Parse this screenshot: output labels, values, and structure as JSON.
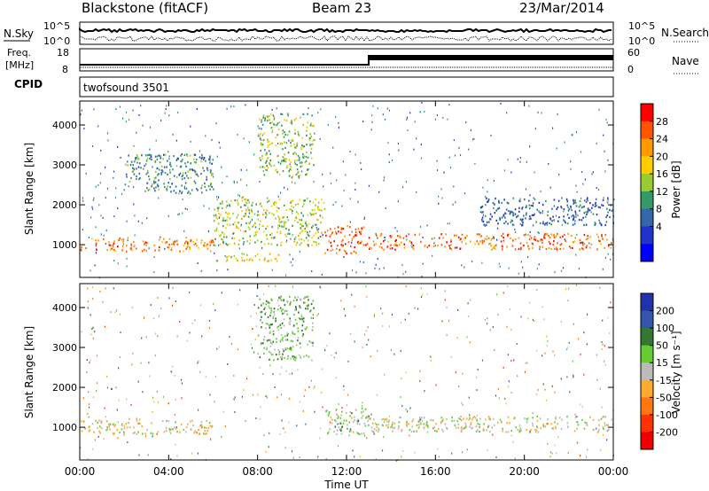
{
  "header": {
    "station": "Blackstone (fitACF)",
    "beam": "Beam 23",
    "date": "23/Mar/2014"
  },
  "noise_panel": {
    "left_label": "N.Sky",
    "right_label": "N.Search",
    "left_ticks": [
      "10^5",
      "10^0"
    ],
    "right_ticks": [
      "10^5",
      "10^0"
    ]
  },
  "freq_panel": {
    "left_label_1": "Freq.",
    "left_label_2": "[MHz]",
    "right_label": "Nave",
    "left_ticks": [
      "18",
      "8"
    ],
    "right_ticks": [
      "60",
      "0"
    ]
  },
  "cpid_panel": {
    "label": "CPID",
    "value": "twofsound 3501"
  },
  "power_colorbar": {
    "label": "Power [dB]",
    "ticks": [
      "28",
      "24",
      "20",
      "16",
      "12",
      "8",
      "4"
    ],
    "colors": [
      "#ff0000",
      "#ff5500",
      "#ff9900",
      "#ffcc00",
      "#99cc33",
      "#339966",
      "#3366aa",
      "#2233cc",
      "#0000ff"
    ]
  },
  "velocity_colorbar": {
    "label": "Velocity [m s⁻¹]",
    "ticks": [
      "200",
      "100",
      "50",
      "15",
      "-15",
      "-50",
      "-100",
      "-200"
    ],
    "colors": [
      "#2233aa",
      "#3355aa",
      "#337733",
      "#66cc33",
      "#bbbbbb",
      "#ffaa33",
      "#ff7711",
      "#ff3300",
      "#ee0000"
    ]
  },
  "axes": {
    "ylabel": "Slant Range [km]",
    "yticks": [
      "4000",
      "3000",
      "2000",
      "1000"
    ],
    "xlabel": "Time UT",
    "xticks": [
      "00:00",
      "04:00",
      "08:00",
      "12:00",
      "16:00",
      "20:00",
      "00:00"
    ]
  },
  "chart_data": [
    {
      "type": "heatmap",
      "title": "",
      "xlabel": "",
      "ylabel": "Slant Range [km]",
      "xlim_hours_ut": [
        0,
        24
      ],
      "ylim_km": [
        180,
        4600
      ],
      "colorbar_label": "Power [dB]",
      "colorbar_range": [
        0,
        30
      ],
      "features": [
        {
          "name": "",
          "t_hours": [
            0,
            6
          ],
          "range_km": [
            850,
            1200
          ],
          "value": 24
        },
        {
          "name": "",
          "t_hours": [
            6,
            11
          ],
          "range_km": [
            1000,
            2200
          ],
          "value": 16
        },
        {
          "name": "",
          "t_hours": [
            11,
            13
          ],
          "range_km": [
            800,
            1500
          ],
          "value": 26
        },
        {
          "name": "",
          "t_hours": [
            13,
            24
          ],
          "range_km": [
            900,
            1300
          ],
          "value": 25
        },
        {
          "name": "",
          "t_hours": [
            2,
            6
          ],
          "range_km": [
            2300,
            3300
          ],
          "value": 10
        },
        {
          "name": "",
          "t_hours": [
            8,
            10.5
          ],
          "range_km": [
            2700,
            4300
          ],
          "value": 14
        },
        {
          "name": "",
          "t_hours": [
            6,
            9
          ],
          "range_km": [
            600,
            800
          ],
          "value": 18
        },
        {
          "name": "",
          "t_hours": [
            18,
            24
          ],
          "range_km": [
            1500,
            2200
          ],
          "value": 7
        }
      ]
    },
    {
      "type": "heatmap",
      "title": "",
      "xlabel": "Time UT",
      "ylabel": "Slant Range [km]",
      "xlim_hours_ut": [
        0,
        24
      ],
      "ylim_km": [
        180,
        4600
      ],
      "colorbar_label": "Velocity [m s⁻¹]",
      "colorbar_range": [
        -250,
        250
      ],
      "features": [
        {
          "name": "",
          "t_hours": [
            0,
            6
          ],
          "range_km": [
            850,
            1200
          ],
          "value": -20
        },
        {
          "name": "",
          "t_hours": [
            11,
            13
          ],
          "range_km": [
            800,
            1500
          ],
          "value": 30
        },
        {
          "name": "",
          "t_hours": [
            13,
            24
          ],
          "range_km": [
            900,
            1300
          ],
          "value": 0
        },
        {
          "name": "",
          "t_hours": [
            8,
            10.5
          ],
          "range_km": [
            2700,
            4300
          ],
          "value": 60
        }
      ]
    }
  ]
}
